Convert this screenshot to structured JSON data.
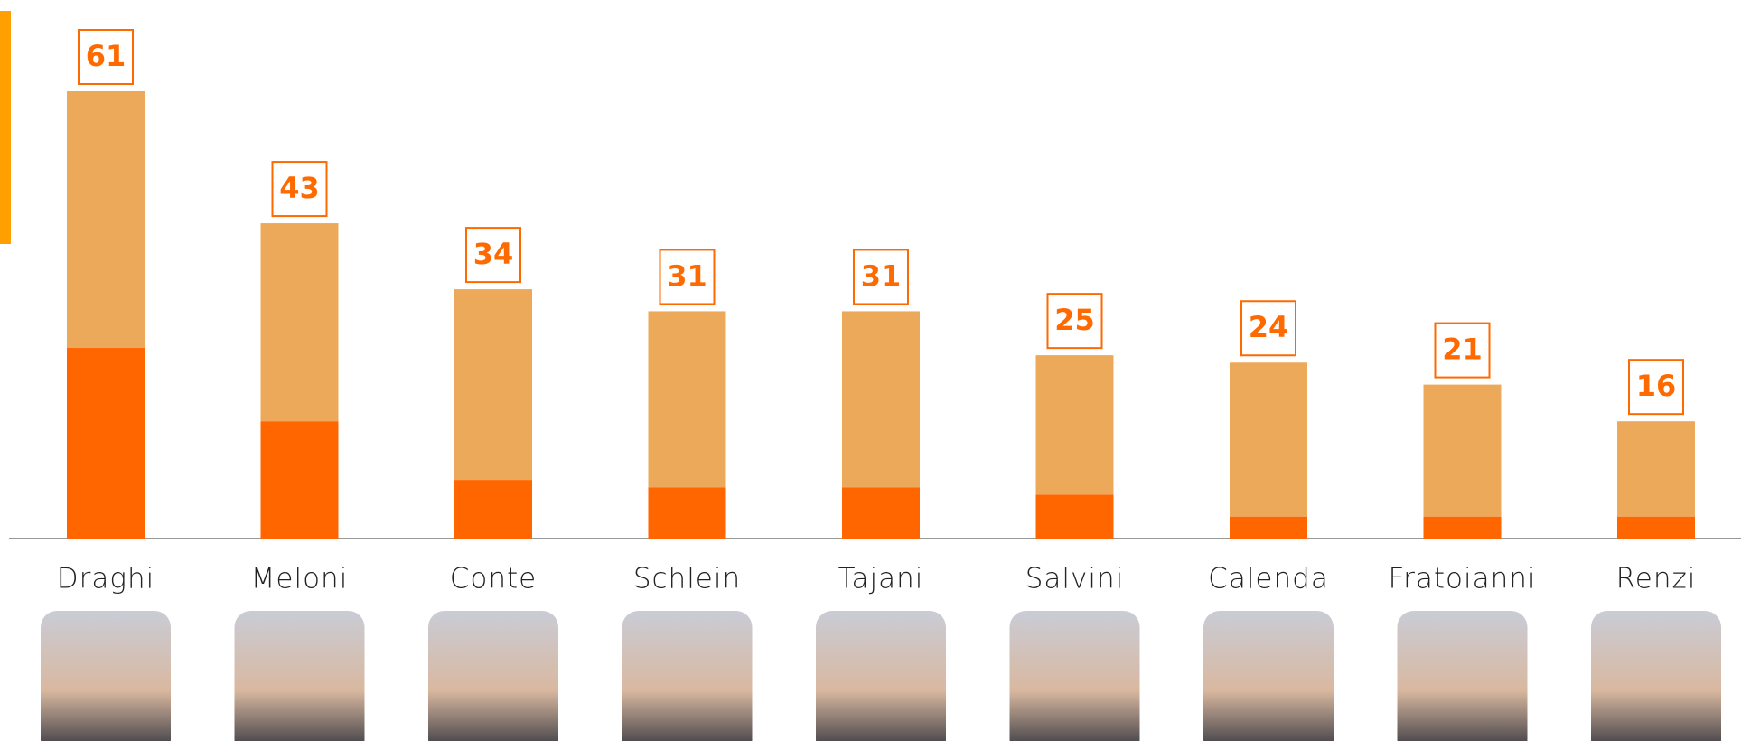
{
  "chart_data": {
    "type": "stacked-bar",
    "categories": [
      "Draghi",
      "Meloni",
      "Conte",
      "Schlein",
      "Tajani",
      "Salvini",
      "Calenda",
      "Fratoianni",
      "Renzi"
    ],
    "series": [
      {
        "color": "#ff6600",
        "values": [
          26,
          16,
          8,
          7,
          7,
          6,
          3,
          3,
          3
        ]
      },
      {
        "color": "#eda95a",
        "values": [
          35,
          27,
          26,
          24,
          24,
          19,
          21,
          18,
          13
        ]
      }
    ],
    "totals": [
      61,
      43,
      34,
      31,
      31,
      25,
      24,
      21,
      16
    ]
  }
}
